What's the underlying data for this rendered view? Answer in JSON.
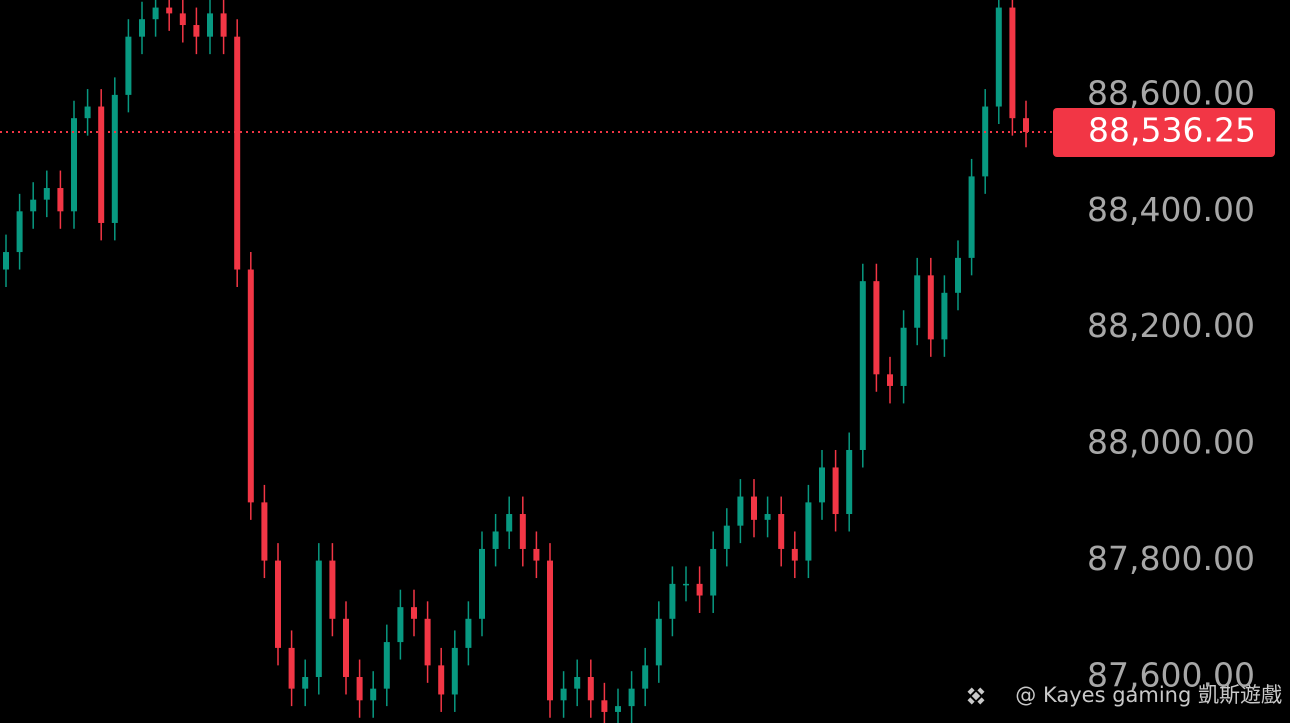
{
  "chart_data": {
    "type": "candlestick",
    "ylim": [
      87521,
      88763
    ],
    "yticks": [
      {
        "value": 88600,
        "label": "88,600.00"
      },
      {
        "value": 88400,
        "label": "88,400.00"
      },
      {
        "value": 88200,
        "label": "88,200.00"
      },
      {
        "value": 88000,
        "label": "88,000.00"
      },
      {
        "value": 87800,
        "label": "87,800.00"
      },
      {
        "value": 87600,
        "label": "87,600.00"
      }
    ],
    "up_color": "#089981",
    "down_color": "#f23645",
    "current_price": {
      "value": 88536.25,
      "label": "88,536.25",
      "color": "#f23645"
    },
    "watermark": "@ Kayes gaming 凱斯遊戲",
    "series": {
      "open": [
        88300,
        88330,
        88400,
        88420,
        88440,
        88400,
        88560,
        88580,
        88380,
        88600,
        88700,
        88730,
        88750,
        88740,
        88720,
        88700,
        88740,
        88700,
        88300,
        87900,
        87800,
        87650,
        87580,
        87600,
        87800,
        87700,
        87600,
        87560,
        87580,
        87660,
        87720,
        87700,
        87620,
        87570,
        87650,
        87700,
        87820,
        87850,
        87880,
        87820,
        87800,
        87560,
        87580,
        87600,
        87560,
        87540,
        87550,
        87580,
        87620,
        87700,
        87760,
        87760,
        87740,
        87820,
        87860,
        87910,
        87870,
        87880,
        87820,
        87800,
        87900,
        87960,
        87880,
        87990,
        88280,
        88120,
        88100,
        88200,
        88290,
        88180,
        88260,
        88320,
        88460,
        88580,
        88750,
        88560
      ],
      "high": [
        88360,
        88430,
        88450,
        88470,
        88470,
        88590,
        88610,
        88610,
        88630,
        88730,
        88760,
        88780,
        88780,
        88770,
        88750,
        88770,
        88770,
        88730,
        88330,
        87930,
        87830,
        87680,
        87630,
        87830,
        87830,
        87730,
        87630,
        87610,
        87690,
        87750,
        87750,
        87730,
        87650,
        87680,
        87730,
        87850,
        87880,
        87910,
        87910,
        87850,
        87830,
        87610,
        87630,
        87630,
        87590,
        87580,
        87610,
        87650,
        87730,
        87790,
        87790,
        87790,
        87850,
        87890,
        87940,
        87940,
        87910,
        87910,
        87850,
        87930,
        87990,
        87990,
        88020,
        88310,
        88310,
        88150,
        88230,
        88320,
        88320,
        88290,
        88350,
        88490,
        88610,
        88780,
        88780,
        88590
      ],
      "low": [
        88270,
        88300,
        88370,
        88390,
        88370,
        88370,
        88530,
        88350,
        88350,
        88570,
        88670,
        88700,
        88710,
        88690,
        88670,
        88670,
        88670,
        88270,
        87870,
        87770,
        87620,
        87550,
        87550,
        87570,
        87670,
        87570,
        87530,
        87530,
        87550,
        87630,
        87670,
        87590,
        87540,
        87540,
        87620,
        87670,
        87790,
        87820,
        87790,
        87770,
        87530,
        87530,
        87550,
        87530,
        87510,
        87510,
        87520,
        87550,
        87590,
        87670,
        87730,
        87710,
        87710,
        87790,
        87830,
        87840,
        87840,
        87790,
        87770,
        87770,
        87870,
        87850,
        87850,
        87960,
        88090,
        88070,
        88070,
        88170,
        88150,
        88150,
        88230,
        88290,
        88430,
        88550,
        88530,
        88510
      ],
      "close": [
        88330,
        88400,
        88420,
        88440,
        88400,
        88560,
        88580,
        88380,
        88600,
        88700,
        88730,
        88750,
        88740,
        88720,
        88700,
        88740,
        88700,
        88300,
        87900,
        87800,
        87650,
        87580,
        87600,
        87800,
        87700,
        87600,
        87560,
        87580,
        87660,
        87720,
        87700,
        87620,
        87570,
        87650,
        87700,
        87820,
        87850,
        87880,
        87820,
        87800,
        87560,
        87580,
        87600,
        87560,
        87540,
        87550,
        87580,
        87620,
        87700,
        87760,
        87760,
        87740,
        87820,
        87860,
        87910,
        87870,
        87880,
        87820,
        87800,
        87900,
        87960,
        87880,
        87990,
        88280,
        88120,
        88100,
        88200,
        88290,
        88180,
        88260,
        88320,
        88460,
        88580,
        88750,
        88560,
        88536.25
      ]
    }
  }
}
